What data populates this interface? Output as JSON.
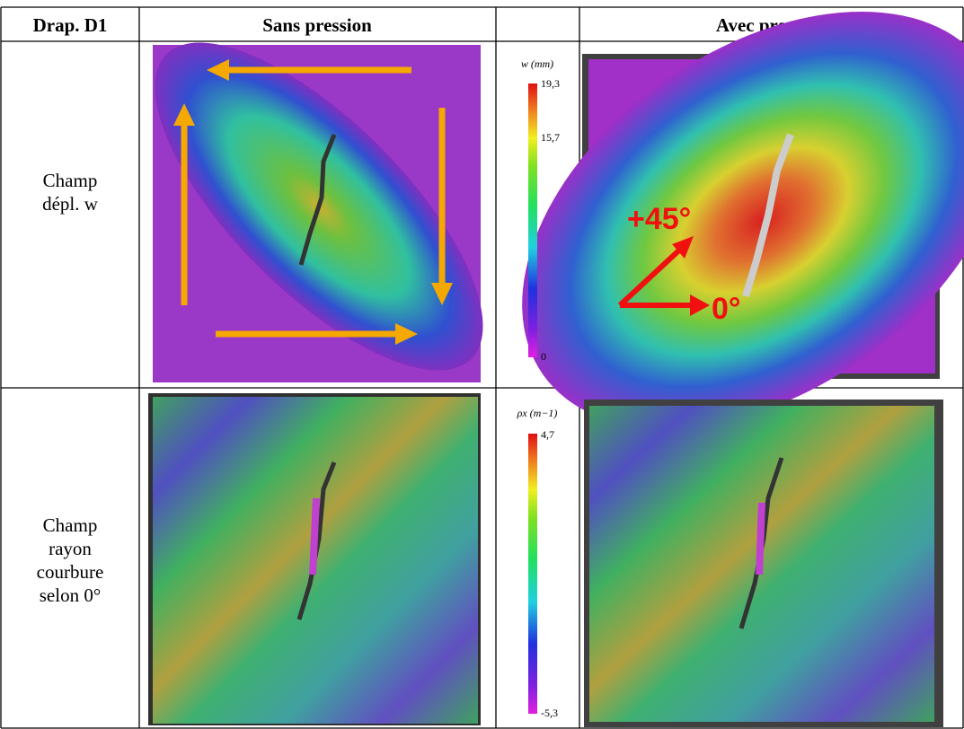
{
  "header": {
    "col1": "Drap. D1",
    "col2": "Sans pression",
    "col4": "Avec pression"
  },
  "rows": [
    {
      "label": [
        "Champ",
        "dépl.  w"
      ],
      "colorbar": {
        "title": "w (mm)",
        "ticks": [
          "19,3",
          "15,7",
          "0"
        ]
      },
      "annotations": [
        "+45°",
        "0°"
      ]
    },
    {
      "label": [
        "Champ",
        "rayon",
        "courbure",
        "selon 0°"
      ],
      "colorbar": {
        "title": "ρx (m−1)",
        "ticks": [
          "4,7",
          "-5,3"
        ]
      }
    }
  ]
}
